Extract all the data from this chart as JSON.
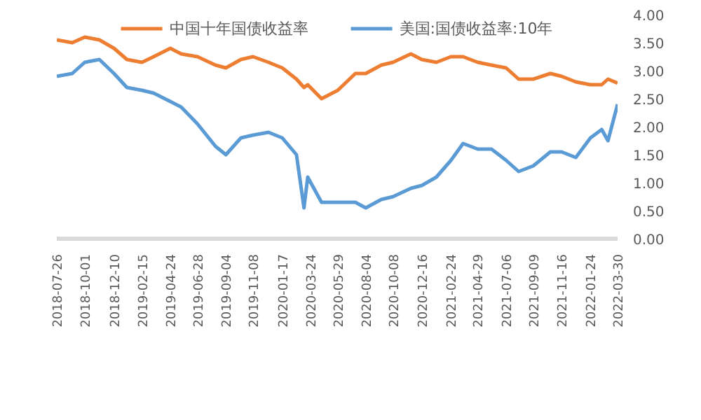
{
  "chart_data": {
    "type": "line",
    "x": [
      "2018-07-26",
      "2018-09-01",
      "2018-10-01",
      "2018-11-05",
      "2018-12-10",
      "2019-01-10",
      "2019-02-15",
      "2019-03-15",
      "2019-04-24",
      "2019-05-20",
      "2019-06-28",
      "2019-08-10",
      "2019-09-04",
      "2019-10-10",
      "2019-11-08",
      "2019-12-15",
      "2020-01-17",
      "2020-02-20",
      "2020-03-09",
      "2020-03-18",
      "2020-04-20",
      "2020-05-29",
      "2020-07-10",
      "2020-08-04",
      "2020-09-10",
      "2020-10-08",
      "2020-11-20",
      "2020-12-16",
      "2021-01-20",
      "2021-02-24",
      "2021-03-25",
      "2021-04-29",
      "2021-06-01",
      "2021-07-06",
      "2021-08-05",
      "2021-09-09",
      "2021-10-20",
      "2021-11-16",
      "2021-12-20",
      "2022-01-24",
      "2022-02-20",
      "2022-03-07",
      "2022-03-30"
    ],
    "series": [
      {
        "name": "中国十年国债收益率",
        "color": "#ed7d31",
        "values": [
          3.55,
          3.5,
          3.6,
          3.55,
          3.4,
          3.2,
          3.15,
          3.25,
          3.4,
          3.3,
          3.25,
          3.1,
          3.05,
          3.2,
          3.25,
          3.15,
          3.05,
          2.85,
          2.7,
          2.75,
          2.5,
          2.65,
          2.95,
          2.95,
          3.1,
          3.15,
          3.3,
          3.2,
          3.15,
          3.25,
          3.25,
          3.15,
          3.1,
          3.05,
          2.85,
          2.85,
          2.95,
          2.9,
          2.8,
          2.75,
          2.75,
          2.85,
          2.78
        ]
      },
      {
        "name": "美国:国债收益率:10年",
        "color": "#5b9bd5",
        "values": [
          2.9,
          2.95,
          3.15,
          3.2,
          2.95,
          2.7,
          2.65,
          2.6,
          2.45,
          2.35,
          2.05,
          1.65,
          1.5,
          1.8,
          1.85,
          1.9,
          1.8,
          1.5,
          0.55,
          1.1,
          0.65,
          0.65,
          0.65,
          0.55,
          0.7,
          0.75,
          0.9,
          0.95,
          1.1,
          1.4,
          1.7,
          1.6,
          1.6,
          1.4,
          1.2,
          1.3,
          1.55,
          1.55,
          1.45,
          1.8,
          1.95,
          1.75,
          2.4
        ]
      }
    ],
    "xlim": [
      "2018-07-26",
      "2022-03-30"
    ],
    "xticks": [
      "2018-07-26",
      "2018-10-01",
      "2018-12-10",
      "2019-02-15",
      "2019-04-24",
      "2019-06-28",
      "2019-09-04",
      "2019-11-08",
      "2020-01-17",
      "2020-03-24",
      "2020-05-29",
      "2020-08-04",
      "2020-10-08",
      "2020-12-16",
      "2021-02-24",
      "2021-04-29",
      "2021-07-06",
      "2021-09-09",
      "2021-11-16",
      "2022-01-24",
      "2022-03-30"
    ],
    "ylim": [
      0,
      4
    ],
    "yticks": [
      {
        "value": 0,
        "label": "0.00"
      },
      {
        "value": 0.5,
        "label": "0.50"
      },
      {
        "value": 1,
        "label": "1.00"
      },
      {
        "value": 1.5,
        "label": "1.50"
      },
      {
        "value": 2,
        "label": "2.00"
      },
      {
        "value": 2.5,
        "label": "2.50"
      },
      {
        "value": 3,
        "label": "3.00"
      },
      {
        "value": 3.5,
        "label": "3.50"
      },
      {
        "value": 4,
        "label": "4.00"
      }
    ],
    "legend": "top",
    "marker": "none",
    "line_style": "solid"
  }
}
